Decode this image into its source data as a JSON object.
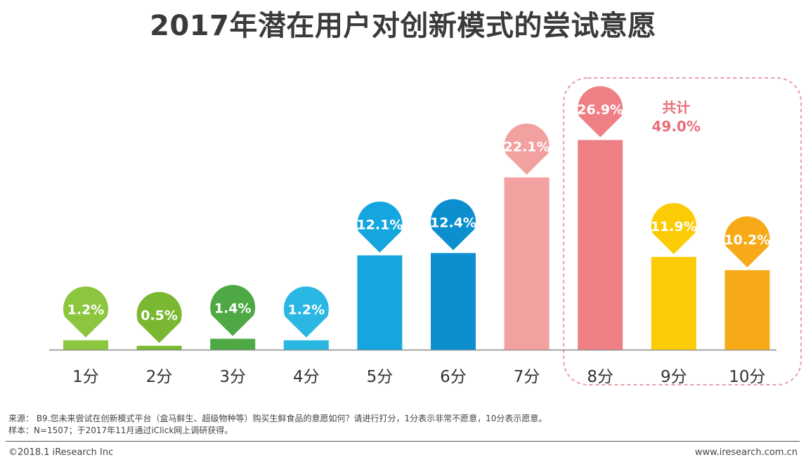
{
  "chart_data": {
    "type": "bar",
    "title": "2017年潜在用户对创新模式的尝试意愿",
    "categories": [
      "1分",
      "2分",
      "3分",
      "4分",
      "5分",
      "6分",
      "7分",
      "8分",
      "9分",
      "10分"
    ],
    "values": [
      1.2,
      0.5,
      1.4,
      1.2,
      12.1,
      12.4,
      22.1,
      26.9,
      11.9,
      10.2
    ],
    "value_labels": [
      "1.2%",
      "0.5%",
      "1.4%",
      "1.2%",
      "12.1%",
      "12.4%",
      "22.1%",
      "26.9%",
      "11.9%",
      "10.2%"
    ],
    "bar_colors": [
      "#8cc63f",
      "#7bb832",
      "#4ea843",
      "#2bb7e4",
      "#16a6df",
      "#0b8fcf",
      "#f2a0a0",
      "#ee7f85",
      "#fbcb05",
      "#f6aa18"
    ],
    "marker_colors": [
      "#8cc63f",
      "#7bb832",
      "#4ea843",
      "#2bb7e4",
      "#16a6df",
      "#0b8fcf",
      "#f2a0a0",
      "#ee7f85",
      "#fbcb05",
      "#f6aa18"
    ],
    "ylim": [
      0,
      30
    ],
    "grid": false,
    "annotation": {
      "label": "共计",
      "value": "49.0%",
      "color": "#e8707a",
      "box_color": "#e8a0a8"
    }
  },
  "notes": {
    "source": "来源： B9.您未来尝试在创新模式平台（盒马鲜生、超级物种等）购买生鲜食品的意愿如何？请进行打分，1分表示非常不愿意，10分表示愿意。",
    "sample": "样本：N=1507；于2017年11月通过iClick网上调研获得。"
  },
  "footer": {
    "copyright": "©2018.1 iResearch Inc",
    "website": "www.iresearch.com.cn"
  }
}
